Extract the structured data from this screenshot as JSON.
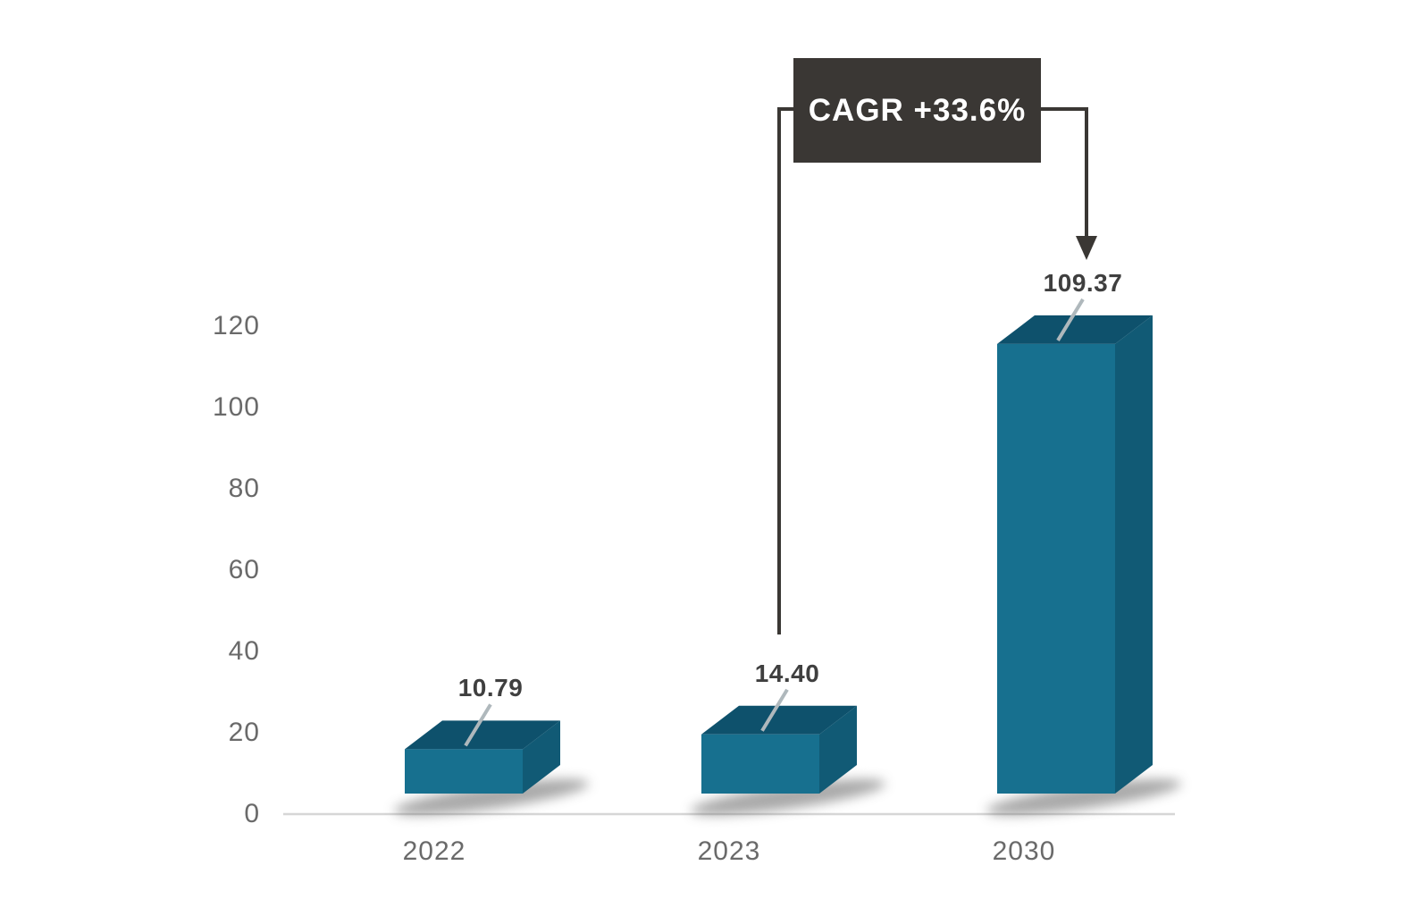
{
  "chart_data": {
    "type": "bar",
    "style": "3d-box-bars",
    "title": "",
    "xlabel": "",
    "ylabel": "",
    "categories": [
      "2022",
      "2023",
      "2030"
    ],
    "values": [
      10.79,
      14.4,
      109.37
    ],
    "value_labels": [
      "10.79",
      "14.40",
      "109.37"
    ],
    "ytick_labels": [
      "0",
      "20",
      "40",
      "60",
      "80",
      "100",
      "120"
    ],
    "ytick_values": [
      0,
      20,
      40,
      60,
      80,
      100,
      120
    ],
    "ylim": [
      0,
      120
    ],
    "grid": false,
    "legend": null,
    "annotation": "CAGR +33.6%",
    "annotation_links": [
      "2023",
      "2030"
    ],
    "colors": {
      "background": "#FFFFFF",
      "bar_front": "#17708F",
      "bar_top": "#0E516C",
      "bar_side": "#115A75",
      "annotation_box": "#3A3734",
      "annotation_text": "#FFFFFF",
      "connector_line": "#3A3734",
      "axis_label": "#6A6A6A",
      "value_label": "#3F3F3F",
      "axis_line": "#D6D6D6",
      "leader_line": "#AFB8BC",
      "shadow": "#555555"
    }
  }
}
